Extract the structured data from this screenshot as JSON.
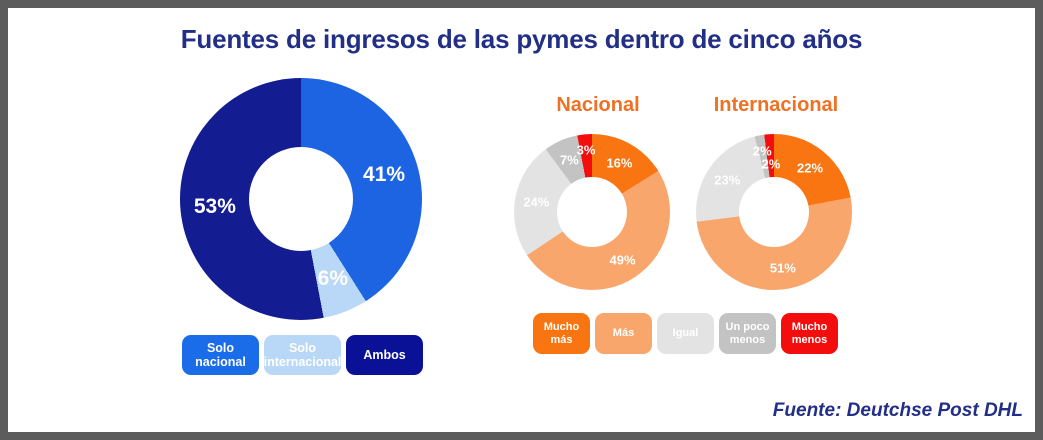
{
  "title": "Fuentes de ingresos de las pymes dentro de cinco años",
  "source_credit": "Fuente: Deutchse Post DHL",
  "palette": {
    "frame_border": "#5c5c5c",
    "title_navy": "#222f87",
    "header_orange": "#ee7124",
    "label_white": "#ffffff"
  },
  "chart_data": [
    {
      "type": "pie",
      "name": "fuentes-ingresos-donut",
      "title": "",
      "donut": true,
      "direction": "clockwise",
      "start_angle_deg": 0,
      "categories": [
        "Solo nacional",
        "Solo internacional",
        "Ambos"
      ],
      "values": [
        41,
        6,
        53
      ],
      "labels": [
        "41%",
        "6%",
        "53%"
      ],
      "colors": [
        "#1c64e2",
        "#b9d7f6",
        "#131c90"
      ]
    },
    {
      "type": "pie",
      "name": "nacional-donut",
      "title": "Nacional",
      "donut": true,
      "direction": "clockwise",
      "start_angle_deg": 0,
      "categories": [
        "Mucho más",
        "Más",
        "Igual",
        "Un poco menos",
        "Mucho menos"
      ],
      "values": [
        16,
        49,
        24,
        7,
        3
      ],
      "labels": [
        "16%",
        "49%",
        "24%",
        "7%",
        "3%"
      ],
      "colors": [
        "#f87511",
        "#f9a66c",
        "#e3e3e3",
        "#c3c3c3",
        "#f40d0d"
      ]
    },
    {
      "type": "pie",
      "name": "internacional-donut",
      "title": "Internacional",
      "donut": true,
      "direction": "clockwise",
      "start_angle_deg": 0,
      "categories": [
        "Mucho más",
        "Más",
        "Igual",
        "Un poco menos",
        "Mucho menos"
      ],
      "values": [
        22,
        51,
        23,
        2,
        2
      ],
      "labels": [
        "22%",
        "51%",
        "23%",
        "2%",
        "2%"
      ],
      "colors": [
        "#f87511",
        "#f9a66c",
        "#e3e3e3",
        "#c3c3c3",
        "#f40d0d"
      ]
    }
  ],
  "legend_left": {
    "items": [
      {
        "label": "Solo nacional",
        "color": "#1a6ce8",
        "text_color": "#ffffff"
      },
      {
        "label": "Solo internacional",
        "color": "#b9d7f6",
        "text_color": "#ffffff"
      },
      {
        "label": "Ambos",
        "color": "#0a1196",
        "text_color": "#ffffff"
      }
    ]
  },
  "legend_right": {
    "items": [
      {
        "label": "Mucho más",
        "color": "#f87511",
        "text_color": "#ffffff"
      },
      {
        "label": "Más",
        "color": "#f9a66c",
        "text_color": "#ffffff"
      },
      {
        "label": "Igual",
        "color": "#e3e3e3",
        "text_color": "#ffffff"
      },
      {
        "label": "Un poco menos",
        "color": "#c3c3c3",
        "text_color": "#ffffff"
      },
      {
        "label": "Mucho menos",
        "color": "#f40d0d",
        "text_color": "#ffffff"
      }
    ]
  }
}
